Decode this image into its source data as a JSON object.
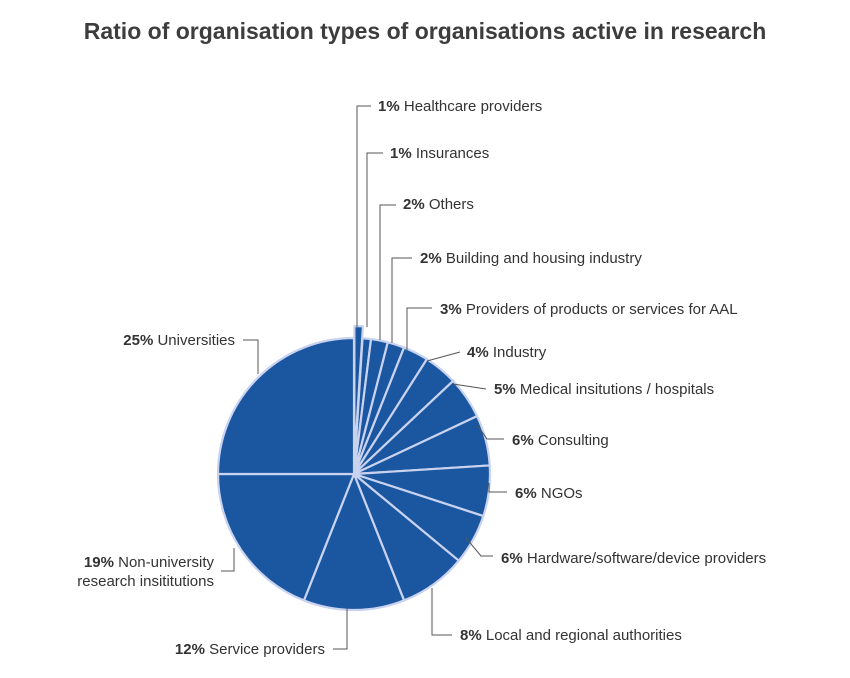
{
  "chart_data": {
    "type": "pie",
    "title": "Ratio of organisation types of organisations active in research",
    "colors": {
      "slice_fill": "#1b56a0",
      "slice_edge": "#c9d3f0",
      "leader": "#555555"
    },
    "slices": [
      {
        "pct_label": "1%",
        "label": "Healthcare providers",
        "value": 1
      },
      {
        "pct_label": "1%",
        "label": "Insurances",
        "value": 1
      },
      {
        "pct_label": "2%",
        "label": "Others",
        "value": 2
      },
      {
        "pct_label": "2%",
        "label": "Building and housing industry",
        "value": 2
      },
      {
        "pct_label": "3%",
        "label": "Providers of products or services for AAL",
        "value": 3
      },
      {
        "pct_label": "4%",
        "label": "Industry",
        "value": 4
      },
      {
        "pct_label": "5%",
        "label": "Medical insitutions / hospitals",
        "value": 5
      },
      {
        "pct_label": "6%",
        "label": "Consulting",
        "value": 6
      },
      {
        "pct_label": "6%",
        "label": "NGOs",
        "value": 6
      },
      {
        "pct_label": "6%",
        "label": "Hardware/software/device providers",
        "value": 6
      },
      {
        "pct_label": "8%",
        "label": "Local and regional authorities",
        "value": 8
      },
      {
        "pct_label": "12%",
        "label": "Service providers",
        "value": 12
      },
      {
        "pct_label": "19%",
        "label": "Non-university research insititutions",
        "value": 19
      },
      {
        "pct_label": "25%",
        "label": "Universities",
        "value": 25
      }
    ]
  }
}
